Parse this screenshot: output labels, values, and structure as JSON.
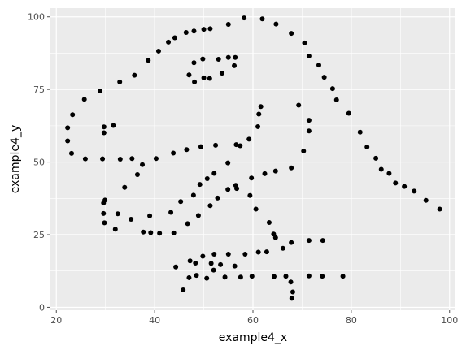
{
  "chart_data": {
    "type": "scatter",
    "title": "",
    "xlabel": "example4_x",
    "ylabel": "example4_y",
    "xlim": [
      18.8,
      101.2
    ],
    "ylim": [
      -1.0,
      103.0
    ],
    "x_ticks": [
      20,
      40,
      60,
      80,
      100
    ],
    "y_ticks": [
      0,
      25,
      50,
      75,
      100
    ],
    "x_tick_labels": [
      "20",
      "40",
      "60",
      "80",
      "100"
    ],
    "y_tick_labels": [
      "0",
      "25",
      "50",
      "75",
      "100"
    ],
    "grid": true,
    "legend": "none",
    "colors": {
      "panel": "#ebebeb",
      "grid_major": "#ffffff",
      "point": "#000000",
      "tick": "#4d4d4d"
    },
    "points": [
      [
        58.2,
        99.6
      ],
      [
        61.9,
        99.3
      ],
      [
        55.0,
        97.4
      ],
      [
        64.7,
        97.5
      ],
      [
        50.0,
        95.7
      ],
      [
        51.3,
        95.9
      ],
      [
        48.0,
        95.1
      ],
      [
        46.4,
        94.6
      ],
      [
        44.1,
        92.8
      ],
      [
        42.8,
        91.3
      ],
      [
        67.8,
        94.3
      ],
      [
        70.5,
        91.0
      ],
      [
        40.8,
        88.2
      ],
      [
        71.4,
        86.5
      ],
      [
        38.7,
        85.0
      ],
      [
        73.4,
        83.4
      ],
      [
        35.9,
        79.9
      ],
      [
        32.9,
        77.6
      ],
      [
        74.5,
        79.2
      ],
      [
        28.9,
        74.5
      ],
      [
        76.2,
        75.3
      ],
      [
        25.7,
        71.6
      ],
      [
        77.0,
        71.4
      ],
      [
        23.3,
        66.3
      ],
      [
        79.5,
        66.8
      ],
      [
        22.3,
        61.8
      ],
      [
        81.8,
        60.3
      ],
      [
        22.3,
        57.3
      ],
      [
        83.2,
        55.2
      ],
      [
        23.1,
        53.0
      ],
      [
        85.0,
        51.3
      ],
      [
        25.9,
        51.1
      ],
      [
        86.1,
        47.5
      ],
      [
        87.7,
        46.1
      ],
      [
        89.0,
        42.8
      ],
      [
        90.8,
        41.6
      ],
      [
        92.8,
        40.0
      ],
      [
        95.2,
        36.8
      ],
      [
        98.0,
        33.8
      ],
      [
        55.0,
        86.0
      ],
      [
        56.4,
        86.0
      ],
      [
        53.0,
        85.4
      ],
      [
        49.8,
        85.5
      ],
      [
        48.0,
        84.2
      ],
      [
        56.2,
        83.2
      ],
      [
        53.7,
        80.6
      ],
      [
        47.0,
        80.0
      ],
      [
        51.2,
        78.8
      ],
      [
        48.1,
        77.6
      ],
      [
        50.0,
        79.0
      ],
      [
        61.6,
        69.1
      ],
      [
        69.3,
        69.6
      ],
      [
        61.2,
        66.5
      ],
      [
        71.4,
        64.4
      ],
      [
        29.7,
        62.1
      ],
      [
        31.6,
        62.6
      ],
      [
        61.0,
        62.2
      ],
      [
        71.4,
        60.7
      ],
      [
        29.7,
        60.1
      ],
      [
        59.2,
        57.9
      ],
      [
        52.4,
        55.8
      ],
      [
        56.6,
        56.0
      ],
      [
        57.4,
        55.6
      ],
      [
        49.4,
        55.3
      ],
      [
        70.3,
        53.8
      ],
      [
        46.5,
        54.3
      ],
      [
        43.8,
        53.1
      ],
      [
        29.4,
        51.1
      ],
      [
        33.0,
        51.0
      ],
      [
        35.4,
        51.2
      ],
      [
        40.3,
        51.2
      ],
      [
        37.5,
        49.1
      ],
      [
        67.8,
        48.0
      ],
      [
        54.9,
        49.7
      ],
      [
        52.1,
        46.1
      ],
      [
        62.4,
        46.0
      ],
      [
        64.6,
        46.9
      ],
      [
        36.5,
        45.7
      ],
      [
        50.7,
        44.3
      ],
      [
        59.7,
        44.5
      ],
      [
        49.2,
        42.3
      ],
      [
        56.5,
        42.0
      ],
      [
        54.9,
        40.6
      ],
      [
        56.7,
        40.9
      ],
      [
        33.9,
        41.3
      ],
      [
        47.9,
        38.6
      ],
      [
        59.4,
        38.5
      ],
      [
        52.8,
        37.6
      ],
      [
        29.9,
        36.9
      ],
      [
        29.6,
        35.9
      ],
      [
        45.3,
        36.4
      ],
      [
        51.3,
        35.0
      ],
      [
        60.6,
        33.8
      ],
      [
        29.6,
        32.3
      ],
      [
        32.5,
        32.2
      ],
      [
        39.0,
        31.5
      ],
      [
        48.9,
        31.6
      ],
      [
        43.3,
        32.7
      ],
      [
        63.3,
        29.2
      ],
      [
        29.8,
        29.1
      ],
      [
        35.2,
        30.3
      ],
      [
        46.7,
        28.8
      ],
      [
        32.0,
        26.9
      ],
      [
        37.7,
        25.9
      ],
      [
        39.2,
        25.7
      ],
      [
        41.0,
        25.5
      ],
      [
        43.9,
        25.6
      ],
      [
        64.2,
        25.2
      ],
      [
        64.6,
        24.0
      ],
      [
        71.4,
        23.0
      ],
      [
        74.2,
        23.0
      ],
      [
        67.8,
        22.3
      ],
      [
        66.1,
        20.3
      ],
      [
        61.1,
        19.0
      ],
      [
        62.8,
        19.1
      ],
      [
        58.4,
        18.3
      ],
      [
        55.0,
        18.3
      ],
      [
        52.1,
        18.3
      ],
      [
        49.8,
        17.6
      ],
      [
        47.2,
        16.0
      ],
      [
        44.3,
        13.9
      ],
      [
        48.3,
        15.2
      ],
      [
        53.4,
        14.7
      ],
      [
        51.5,
        15.1
      ],
      [
        56.3,
        14.2
      ],
      [
        52.0,
        12.8
      ],
      [
        54.3,
        10.4
      ],
      [
        48.5,
        11.0
      ],
      [
        50.6,
        10.0
      ],
      [
        47.0,
        10.2
      ],
      [
        57.5,
        10.4
      ],
      [
        59.8,
        10.7
      ],
      [
        64.3,
        10.6
      ],
      [
        66.7,
        10.7
      ],
      [
        71.4,
        10.8
      ],
      [
        74.1,
        10.7
      ],
      [
        78.3,
        10.7
      ],
      [
        67.7,
        8.7
      ],
      [
        45.8,
        6.0
      ],
      [
        68.1,
        5.3
      ],
      [
        67.9,
        3.1
      ]
    ]
  }
}
